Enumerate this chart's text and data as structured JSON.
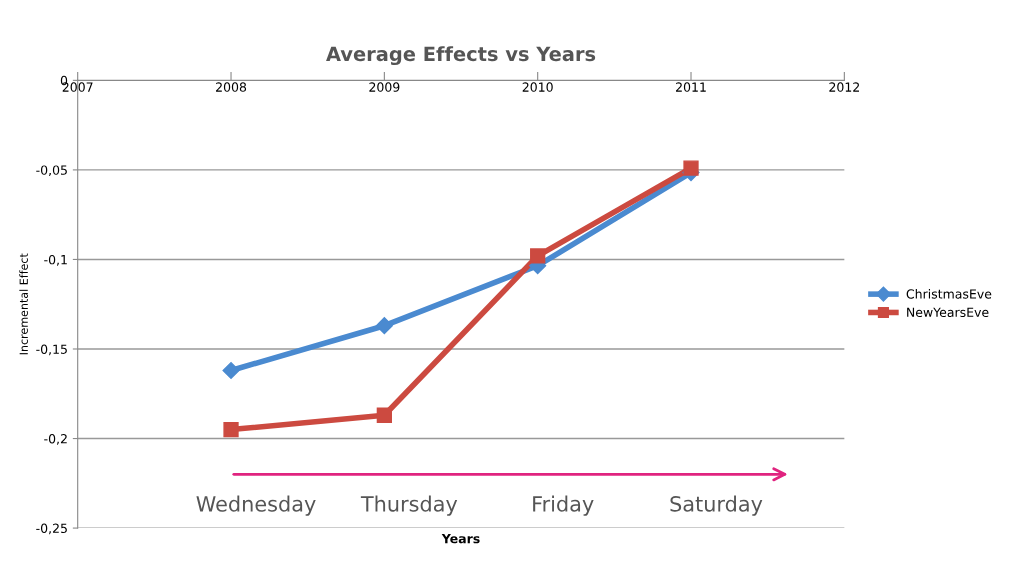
{
  "chart_data": {
    "type": "line",
    "title": "Average Effects vs Years",
    "xlabel": "Years",
    "ylabel": "Incremental Effect",
    "x": [
      2008,
      2009,
      2010,
      2011
    ],
    "series": [
      {
        "name": "ChristmasEve",
        "color": "#4a8ad0",
        "marker": "diamond",
        "values": [
          -0.162,
          -0.137,
          -0.1035,
          -0.0515
        ]
      },
      {
        "name": "NewYearsEve",
        "color": "#cc4a40",
        "marker": "square",
        "values": [
          -0.195,
          -0.187,
          -0.098,
          -0.049
        ]
      }
    ],
    "xlim": [
      2007,
      2012
    ],
    "xticks": [
      2007,
      2008,
      2009,
      2010,
      2011,
      2012
    ],
    "ylim": [
      -0.25,
      0
    ],
    "yticks": [
      {
        "value": -0.25,
        "label": "-0,25"
      },
      {
        "value": -0.2,
        "label": "-0,2"
      },
      {
        "value": -0.15,
        "label": "-0,15"
      },
      {
        "value": -0.1,
        "label": "-0,1"
      },
      {
        "value": -0.05,
        "label": "-0,05"
      },
      0
    ],
    "annotations": [
      "Wednesday",
      "Thursday",
      "Friday",
      "Saturday"
    ],
    "grid": "y",
    "legend": "right",
    "line_style": "solid"
  }
}
